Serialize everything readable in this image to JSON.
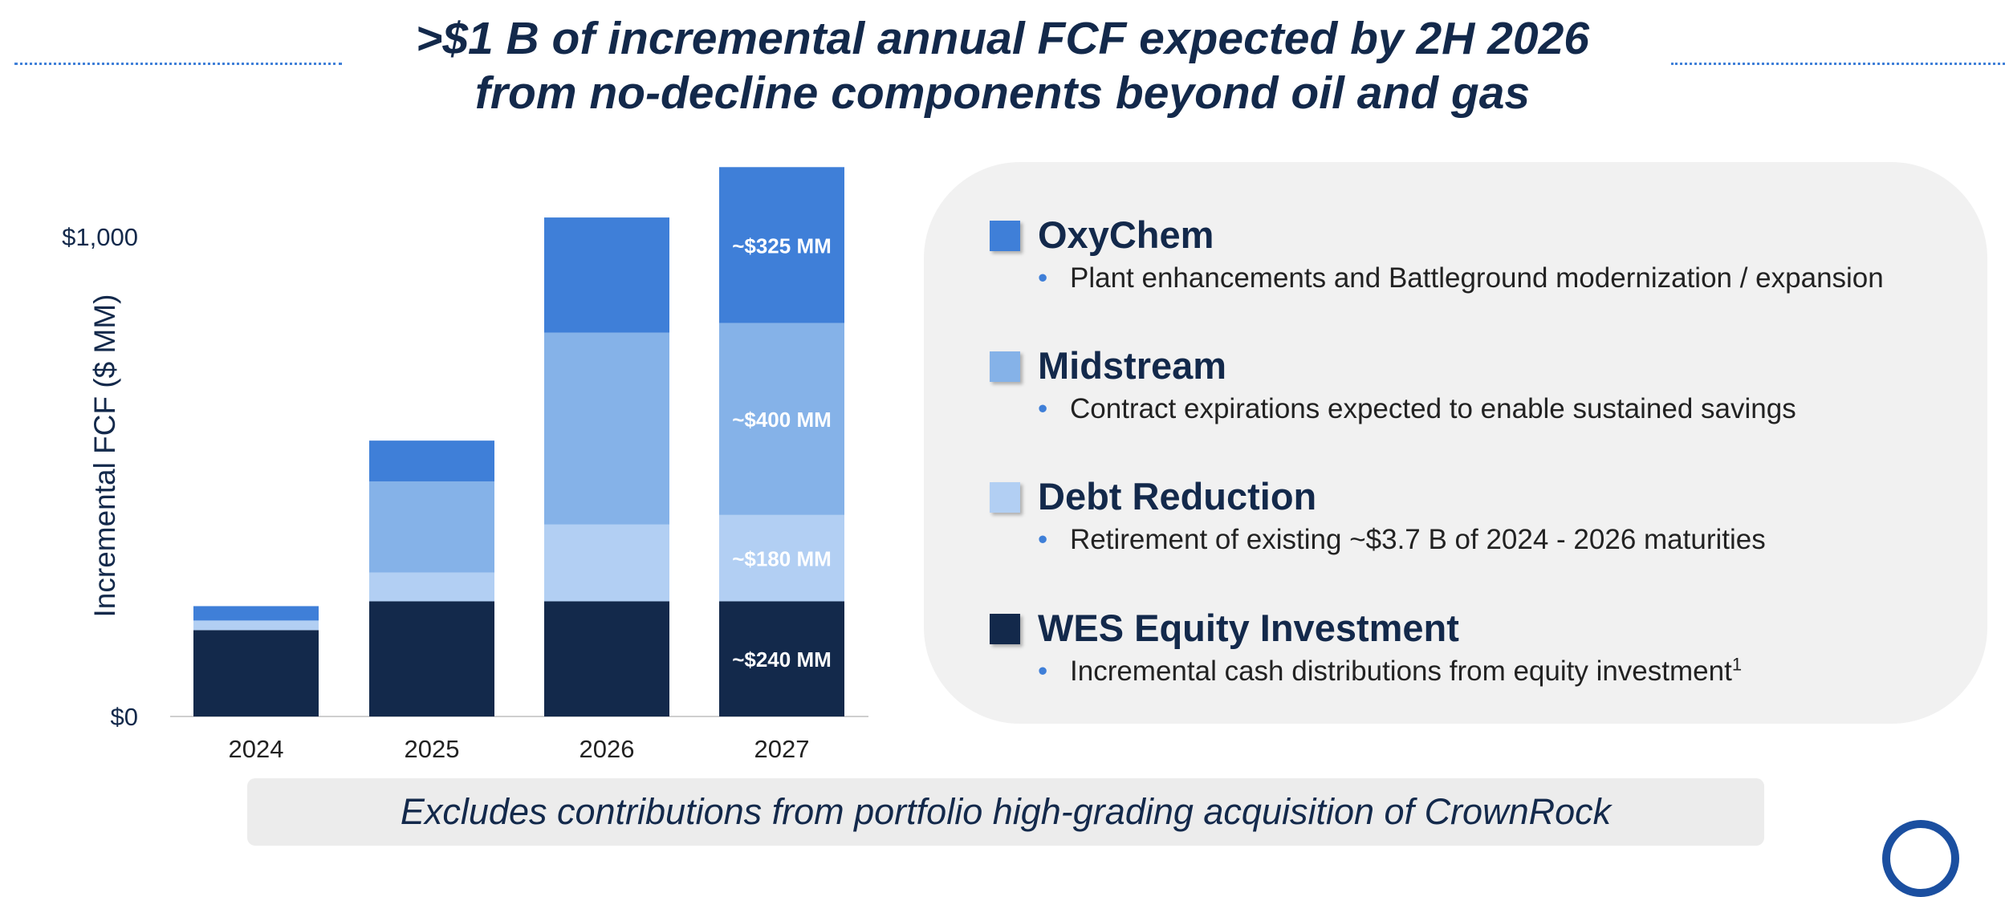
{
  "title": {
    "line1": ">$1 B of incremental annual FCF expected by 2H 2026",
    "line2": "from no-decline components beyond oil and gas"
  },
  "colors": {
    "navy": "#13294b",
    "oxychem": "#3f7fd8",
    "midstream": "#85b2e8",
    "debt": "#b2cff3",
    "wes": "#13294b"
  },
  "chart_data": {
    "type": "bar",
    "stacked": true,
    "categories": [
      "2024",
      "2025",
      "2026",
      "2027"
    ],
    "series": [
      {
        "name": "WES Equity Investment",
        "color": "#13294b",
        "values": [
          180,
          240,
          240,
          240
        ]
      },
      {
        "name": "Debt Reduction",
        "color": "#b2cff3",
        "values": [
          20,
          60,
          160,
          180
        ]
      },
      {
        "name": "Midstream",
        "color": "#85b2e8",
        "values": [
          0,
          190,
          400,
          400
        ]
      },
      {
        "name": "OxyChem",
        "color": "#3f7fd8",
        "values": [
          30,
          85,
          240,
          325
        ]
      }
    ],
    "data_labels": [
      "~$240 MM",
      "~$180 MM",
      "~$400 MM",
      "~$325 MM"
    ],
    "ylabel": "Incremental FCF ($ MM)",
    "yticks": [
      {
        "value": 0,
        "label": "$0"
      },
      {
        "value": 1000,
        "label": "$1,000"
      }
    ],
    "ylim": [
      0,
      1150
    ],
    "grid": false
  },
  "legend": [
    {
      "title": "OxyChem",
      "color": "#3f7fd8",
      "bullet": "Plant enhancements and Battleground modernization / expansion",
      "sup": ""
    },
    {
      "title": "Midstream",
      "color": "#85b2e8",
      "bullet": "Contract expirations expected to enable sustained savings",
      "sup": ""
    },
    {
      "title": "Debt Reduction",
      "color": "#b2cff3",
      "bullet": "Retirement of existing ~$3.7 B of 2024 - 2026 maturities",
      "sup": ""
    },
    {
      "title": "WES Equity Investment",
      "color": "#13294b",
      "bullet": "Incremental cash distributions from equity investment",
      "sup": "1"
    }
  ],
  "footer": "Excludes contributions from portfolio high-grading acquisition of CrownRock"
}
